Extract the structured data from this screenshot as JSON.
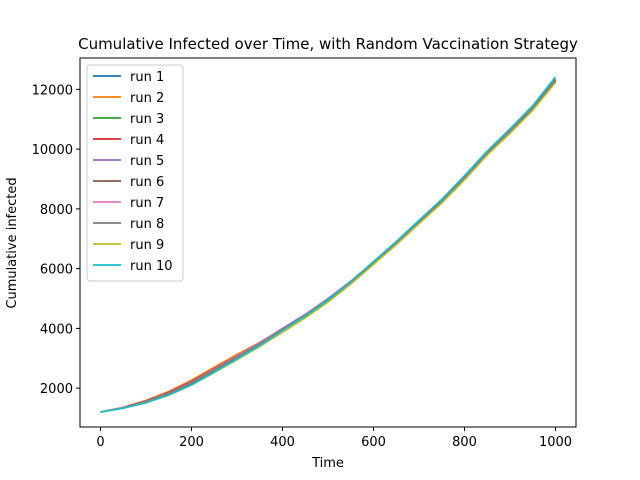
{
  "chart_data": {
    "type": "line",
    "title": "Cumulative Infected over Time, with Random Vaccination Strategy",
    "xlabel": "Time",
    "ylabel": "Cumulative infected",
    "xlim": [
      -45,
      1045
    ],
    "ylim": [
      700,
      13050
    ],
    "xticks": [
      0,
      200,
      400,
      600,
      800,
      1000
    ],
    "yticks": [
      2000,
      4000,
      6000,
      8000,
      10000,
      12000
    ],
    "grid": false,
    "legend_position": "upper-left",
    "x": [
      0,
      50,
      100,
      150,
      200,
      250,
      300,
      350,
      400,
      450,
      500,
      550,
      600,
      650,
      700,
      750,
      800,
      850,
      900,
      950,
      1000
    ],
    "series": [
      {
        "name": "run 1",
        "color": "#1f77b4",
        "values": [
          1200,
          1330,
          1520,
          1790,
          2140,
          2570,
          3000,
          3440,
          3940,
          4410,
          4940,
          5530,
          6180,
          6830,
          7530,
          8210,
          8990,
          9830,
          10560,
          11350,
          12300
        ]
      },
      {
        "name": "run 2",
        "color": "#ff7f0e",
        "values": [
          1200,
          1360,
          1590,
          1890,
          2270,
          2700,
          3130,
          3530,
          3990,
          4460,
          4990,
          5570,
          6220,
          6870,
          7560,
          8240,
          9010,
          9840,
          10580,
          11360,
          12310
        ]
      },
      {
        "name": "run 3",
        "color": "#2ca02c",
        "values": [
          1200,
          1340,
          1540,
          1820,
          2170,
          2590,
          3020,
          3460,
          3950,
          4430,
          4960,
          5550,
          6190,
          6850,
          7550,
          8230,
          9010,
          9850,
          10590,
          11380,
          12340
        ]
      },
      {
        "name": "run 4",
        "color": "#d62728",
        "values": [
          1200,
          1350,
          1570,
          1860,
          2220,
          2650,
          3080,
          3500,
          3970,
          4440,
          4970,
          5550,
          6200,
          6860,
          7550,
          8230,
          9000,
          9830,
          10570,
          11340,
          12290
        ]
      },
      {
        "name": "run 5",
        "color": "#9467bd",
        "values": [
          1200,
          1350,
          1560,
          1840,
          2200,
          2640,
          3070,
          3520,
          4000,
          4470,
          5000,
          5580,
          6230,
          6880,
          7580,
          8270,
          9050,
          9880,
          10620,
          11400,
          12360
        ]
      },
      {
        "name": "run 6",
        "color": "#8c564b",
        "values": [
          1200,
          1340,
          1550,
          1830,
          2180,
          2610,
          3050,
          3490,
          3980,
          4450,
          4980,
          5560,
          6210,
          6860,
          7560,
          8240,
          9010,
          9840,
          10560,
          11320,
          12260
        ]
      },
      {
        "name": "run 7",
        "color": "#e377c2",
        "values": [
          1200,
          1350,
          1550,
          1840,
          2190,
          2620,
          3060,
          3500,
          3970,
          4450,
          4980,
          5570,
          6220,
          6870,
          7570,
          8260,
          9040,
          9870,
          10610,
          11400,
          12350
        ]
      },
      {
        "name": "run 8",
        "color": "#7f7f7f",
        "values": [
          1200,
          1340,
          1550,
          1830,
          2180,
          2610,
          3040,
          3480,
          3960,
          4440,
          4970,
          5560,
          6210,
          6870,
          7570,
          8250,
          9030,
          9870,
          10600,
          11390,
          12330
        ]
      },
      {
        "name": "run 9",
        "color": "#bcbd22",
        "values": [
          1200,
          1330,
          1510,
          1760,
          2100,
          2520,
          2950,
          3390,
          3870,
          4350,
          4880,
          5480,
          6140,
          6800,
          7500,
          8190,
          8970,
          9800,
          10530,
          11300,
          12230
        ]
      },
      {
        "name": "run 10",
        "color": "#17becf",
        "values": [
          1200,
          1330,
          1510,
          1770,
          2110,
          2540,
          2980,
          3430,
          3930,
          4420,
          4960,
          5560,
          6240,
          6910,
          7620,
          8320,
          9110,
          9940,
          10680,
          11460,
          12420
        ]
      }
    ]
  }
}
